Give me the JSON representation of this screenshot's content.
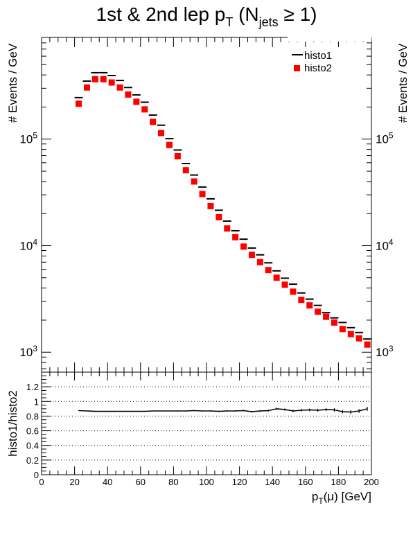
{
  "chart_data": [
    {
      "type": "scatter",
      "title": "1st & 2nd lep p_T (N_jets ≥ 1)",
      "title_parts": {
        "main": "1st & 2nd lep p",
        "sub_T": "T",
        "open": " (N",
        "sub_jets": "jets",
        "close": " ≥ 1)"
      },
      "xlabel": "",
      "ylabel": "# Events / GeV",
      "ylabel_right": "# Events / GeV",
      "yscale": "log",
      "xlim": [
        0,
        200
      ],
      "ylim": [
        650,
        900000
      ],
      "y_tick_labels": [
        {
          "value": 1000,
          "base": "10",
          "exp": "3"
        },
        {
          "value": 10000,
          "base": "10",
          "exp": "4"
        },
        {
          "value": 100000,
          "base": "10",
          "exp": "5"
        }
      ],
      "legend_position": "top-right",
      "grid": false,
      "series": [
        {
          "name": "histo1",
          "style": "horizontal-bar",
          "color": "#000000",
          "bin_width": 5,
          "x": [
            22.5,
            27.5,
            32.5,
            37.5,
            42.5,
            47.5,
            52.5,
            57.5,
            62.5,
            67.5,
            72.5,
            77.5,
            82.5,
            87.5,
            92.5,
            97.5,
            102.5,
            107.5,
            112.5,
            117.5,
            122.5,
            127.5,
            132.5,
            137.5,
            142.5,
            147.5,
            152.5,
            157.5,
            162.5,
            167.5,
            172.5,
            177.5,
            182.5,
            187.5,
            192.5,
            197.5
          ],
          "y": [
            245000,
            350000,
            420000,
            420000,
            395000,
            355000,
            305000,
            260000,
            222000,
            168000,
            135000,
            101000,
            79000,
            59000,
            46000,
            35500,
            27500,
            21500,
            17000,
            13800,
            11500,
            9500,
            8200,
            6900,
            5800,
            4950,
            4350,
            3600,
            3150,
            2750,
            2350,
            2100,
            1900,
            1700,
            1530,
            1330
          ]
        },
        {
          "name": "histo2",
          "style": "square-marker",
          "color": "#ff0000",
          "x": [
            22.5,
            27.5,
            32.5,
            37.5,
            42.5,
            47.5,
            52.5,
            57.5,
            62.5,
            67.5,
            72.5,
            77.5,
            82.5,
            87.5,
            92.5,
            97.5,
            102.5,
            107.5,
            112.5,
            117.5,
            122.5,
            127.5,
            132.5,
            137.5,
            142.5,
            147.5,
            152.5,
            157.5,
            162.5,
            167.5,
            172.5,
            177.5,
            182.5,
            187.5,
            192.5,
            197.5
          ],
          "y": [
            215000,
            305000,
            365000,
            365000,
            340000,
            305000,
            262000,
            224000,
            190000,
            145000,
            114000,
            88000,
            69000,
            51000,
            40000,
            30500,
            23500,
            18500,
            14500,
            12000,
            9800,
            8200,
            7000,
            5900,
            5000,
            4300,
            3700,
            3100,
            2750,
            2400,
            2150,
            1900,
            1650,
            1480,
            1350,
            1180
          ]
        }
      ]
    },
    {
      "type": "scatter",
      "title": "",
      "xlabel": "p_T(μ) [GeV]",
      "xlabel_parts": {
        "main": "p",
        "sub": "T",
        "rest": "(μ) [GeV]"
      },
      "ylabel": "histo1/histo2",
      "xlim": [
        0,
        200
      ],
      "ylim": [
        0,
        1.4
      ],
      "x_ticks": [
        0,
        20,
        40,
        60,
        80,
        100,
        120,
        140,
        160,
        180,
        200
      ],
      "x_tick_labels": [
        "0",
        "20",
        "40",
        "60",
        "80",
        "100",
        "120",
        "140",
        "160",
        "180",
        "200"
      ],
      "y_ticks": [
        0,
        0.2,
        0.4,
        0.6,
        0.8,
        1,
        1.2
      ],
      "y_tick_labels": [
        "0",
        "0.2",
        "0.4",
        "0.6",
        "0.8",
        "1",
        "1.2"
      ],
      "gridlines_y": [
        0.2,
        0.4,
        0.6,
        0.8,
        1,
        1.2
      ],
      "grid": "dotted-horizontal",
      "series": [
        {
          "name": "histo1/histo2",
          "style": "line-with-errors",
          "color": "#000000",
          "x": [
            22.5,
            27.5,
            32.5,
            37.5,
            42.5,
            47.5,
            52.5,
            57.5,
            62.5,
            67.5,
            72.5,
            77.5,
            82.5,
            87.5,
            92.5,
            97.5,
            102.5,
            107.5,
            112.5,
            117.5,
            122.5,
            127.5,
            132.5,
            137.5,
            142.5,
            147.5,
            152.5,
            157.5,
            162.5,
            167.5,
            172.5,
            177.5,
            182.5,
            187.5,
            192.5,
            197.5
          ],
          "y": [
            0.875,
            0.87,
            0.865,
            0.865,
            0.865,
            0.865,
            0.865,
            0.865,
            0.865,
            0.87,
            0.87,
            0.87,
            0.87,
            0.87,
            0.875,
            0.87,
            0.87,
            0.865,
            0.87,
            0.87,
            0.875,
            0.86,
            0.87,
            0.875,
            0.9,
            0.89,
            0.87,
            0.88,
            0.885,
            0.88,
            0.89,
            0.885,
            0.86,
            0.855,
            0.87,
            0.9
          ],
          "err": [
            0.005,
            0.005,
            0.005,
            0.005,
            0.005,
            0.005,
            0.005,
            0.005,
            0.005,
            0.005,
            0.005,
            0.005,
            0.006,
            0.006,
            0.007,
            0.007,
            0.008,
            0.008,
            0.009,
            0.01,
            0.01,
            0.011,
            0.012,
            0.013,
            0.014,
            0.015,
            0.016,
            0.017,
            0.018,
            0.019,
            0.02,
            0.022,
            0.023,
            0.025,
            0.026,
            0.028
          ]
        }
      ]
    }
  ]
}
